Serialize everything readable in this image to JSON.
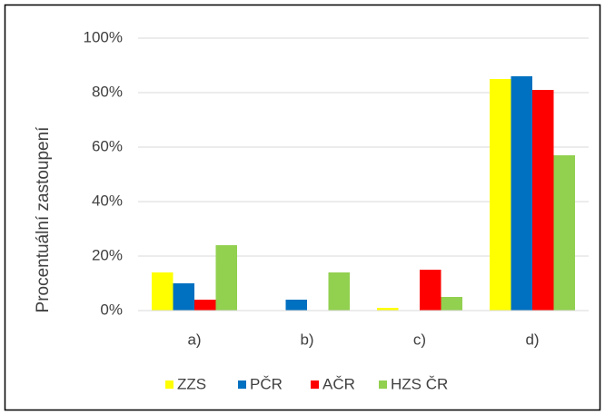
{
  "chart_data": {
    "type": "bar",
    "y_label": "Procentuální zastoupení",
    "categories": [
      "a)",
      "b)",
      "c)",
      "d)"
    ],
    "series": [
      {
        "name": "ZZS",
        "color": "#ffff00",
        "values": [
          14,
          0,
          1,
          85
        ]
      },
      {
        "name": "PČR",
        "color": "#0070c0",
        "values": [
          10,
          4,
          0,
          86
        ]
      },
      {
        "name": "AČR",
        "color": "#ff0000",
        "values": [
          4,
          0,
          15,
          81
        ]
      },
      {
        "name": "HZS ČR",
        "color": "#92d050",
        "values": [
          24,
          14,
          5,
          57
        ]
      }
    ],
    "ylim": [
      0,
      100
    ],
    "yticks": [
      {
        "value": 0,
        "label": "0%"
      },
      {
        "value": 20,
        "label": "20%"
      },
      {
        "value": 40,
        "label": "40%"
      },
      {
        "value": 60,
        "label": "60%"
      },
      {
        "value": 80,
        "label": "80%"
      },
      {
        "value": 100,
        "label": "100%"
      }
    ],
    "grid": true,
    "legend": "bottom"
  }
}
